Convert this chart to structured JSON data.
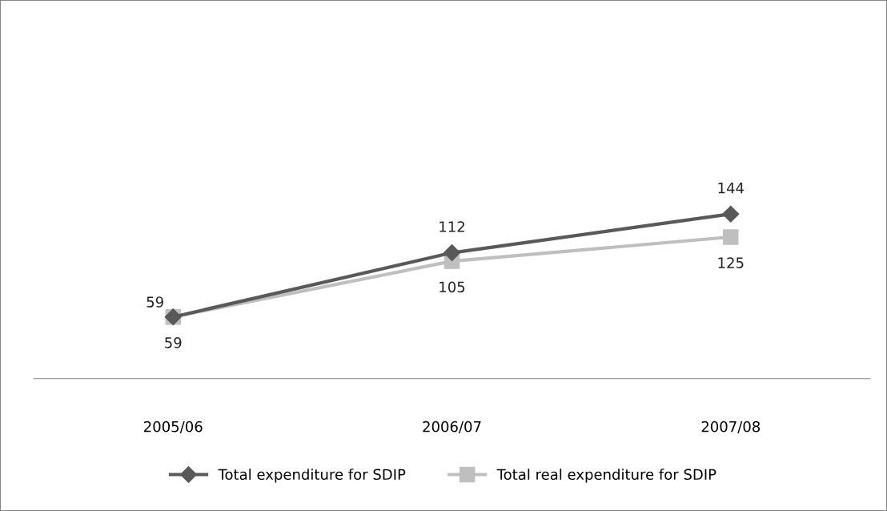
{
  "chart_data": {
    "type": "line",
    "categories": [
      "2005/06",
      "2006/07",
      "2007/08"
    ],
    "series": [
      {
        "name": "Total expenditure for SDIP",
        "color": "#595959",
        "marker": "diamond",
        "values": [
          59,
          112,
          144
        ]
      },
      {
        "name": "Total real expenditure for SDIP",
        "color": "#bfbfbf",
        "marker": "square",
        "values": [
          59,
          105,
          125
        ]
      }
    ],
    "tick_labels": "x",
    "data_labels": true,
    "grid": false,
    "legend": "bottom"
  }
}
